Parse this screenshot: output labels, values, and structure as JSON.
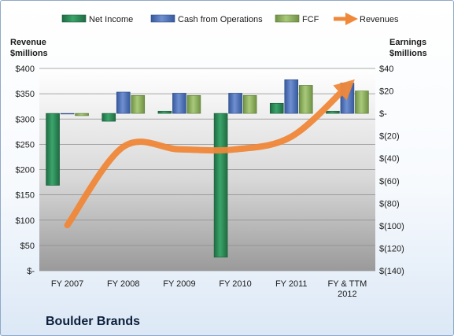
{
  "chart_data": {
    "type": "bar",
    "categories": [
      "FY 2007",
      "FY 2008",
      "FY 2009",
      "FY 2010",
      "FY 2011",
      "FY & TTM|2012"
    ],
    "series": [
      {
        "name": "Net Income",
        "axis": "right",
        "values": [
          -64,
          -7,
          2,
          -128,
          9,
          2
        ],
        "color": "#2e8b57"
      },
      {
        "name": "Cash from Operations",
        "axis": "right",
        "values": [
          0,
          19,
          18,
          18,
          30,
          27
        ],
        "color": "#4a6fb5"
      },
      {
        "name": "FCF",
        "axis": "right",
        "values": [
          -2,
          16,
          16,
          16,
          25,
          20
        ],
        "color": "#8db35a"
      },
      {
        "name": "Revenues",
        "axis": "left",
        "type": "line",
        "values": [
          90,
          245,
          240,
          240,
          265,
          365
        ],
        "color": "#f0883a"
      }
    ],
    "left_axis": {
      "title_lines": [
        "Revenue",
        "$millions"
      ],
      "ylim": [
        0,
        400
      ],
      "ticks": [
        0,
        50,
        100,
        150,
        200,
        250,
        300,
        350,
        400
      ],
      "tick_labels": [
        "$-",
        "$50",
        "$100",
        "$150",
        "$200",
        "$250",
        "$300",
        "$350",
        "$400"
      ]
    },
    "right_axis": {
      "title_lines": [
        "Earnings",
        "$millions"
      ],
      "ylim": [
        -140,
        40
      ],
      "ticks": [
        40,
        20,
        0,
        -20,
        -40,
        -60,
        -80,
        -100,
        -120,
        -140
      ],
      "tick_labels": [
        "$40",
        "$20",
        "$-",
        "$(20)",
        "$(40)",
        "$(60)",
        "$(80)",
        "$(100)",
        "$(120)",
        "$(140)"
      ]
    },
    "grid": true,
    "legend_position": "top",
    "company": "Boulder Brands"
  }
}
